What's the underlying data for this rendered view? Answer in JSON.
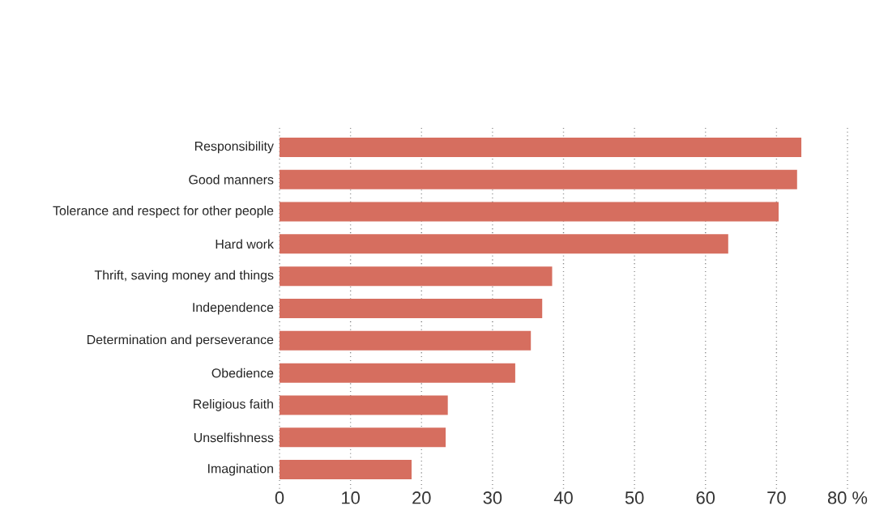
{
  "chart_data": {
    "type": "bar",
    "orientation": "horizontal",
    "categories": [
      "Responsibility",
      "Good manners",
      "Tolerance and respect for other people",
      "Hard work",
      "Thrift, saving money and things",
      "Independence",
      "Determination and perseverance",
      "Obedience",
      "Religious faith",
      "Unselfishness",
      "Imagination"
    ],
    "values": [
      73.5,
      72.9,
      70.3,
      63.2,
      38.4,
      37.0,
      35.4,
      33.2,
      23.7,
      23.4,
      18.6
    ],
    "color": "#d66e5f",
    "xlim": [
      0,
      80
    ],
    "xticks": [
      0,
      10,
      20,
      30,
      40,
      50,
      60,
      70,
      {
        "value": 80,
        "label": "80 %"
      }
    ],
    "grid": "x"
  }
}
